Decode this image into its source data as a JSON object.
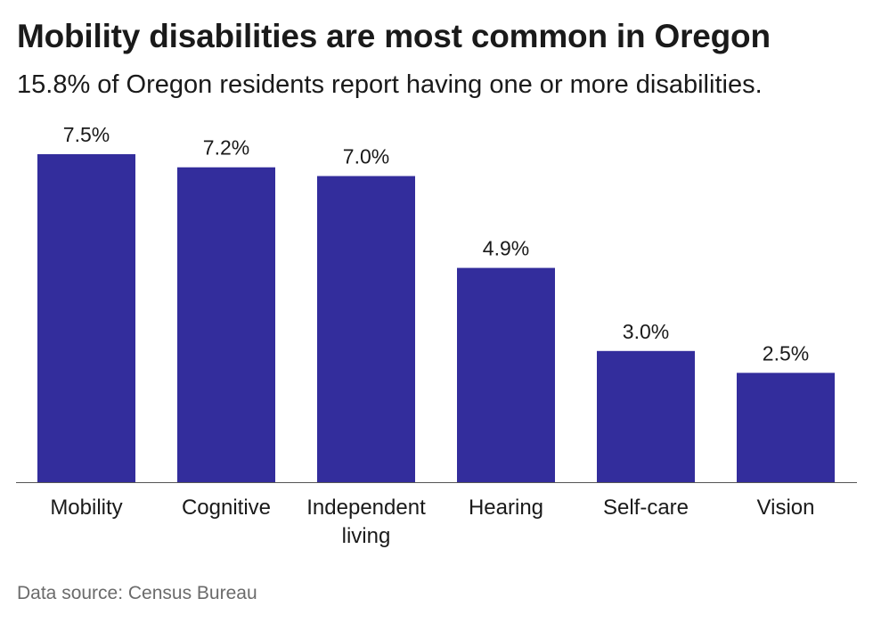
{
  "title": "Mobility disabilities are most common in Oregon",
  "subtitle": "15.8% of Oregon residents report having one or more disabilities.",
  "source": "Data source: Census Bureau",
  "colors": {
    "bar": "#332d9c",
    "axis": "#555555",
    "text": "#1a1a1a"
  },
  "chart_data": {
    "type": "bar",
    "categories": [
      "Mobility",
      "Cognitive",
      "Independent living",
      "Hearing",
      "Self-care",
      "Vision"
    ],
    "values": [
      7.5,
      7.2,
      7.0,
      4.9,
      3.0,
      2.5
    ],
    "data_labels": [
      "7.5%",
      "7.2%",
      "7.0%",
      "4.9%",
      "3.0%",
      "2.5%"
    ],
    "title": "Mobility disabilities are most common in Oregon",
    "subtitle": "15.8% of Oregon residents report having one or more disabilities.",
    "xlabel": "",
    "ylabel": "",
    "ylim": [
      0,
      7.5
    ],
    "grid": false,
    "legend": "none"
  }
}
